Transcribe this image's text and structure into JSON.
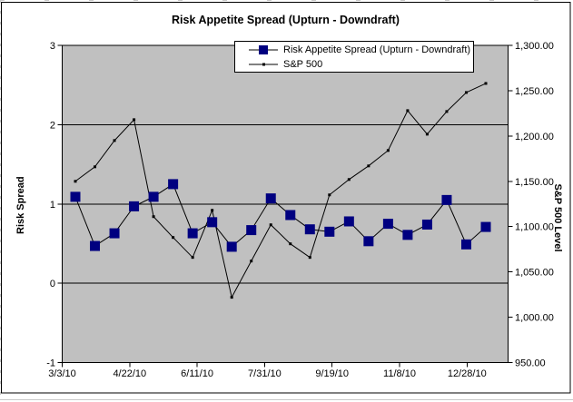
{
  "chart": {
    "title": "Risk Appetite Spread (Upturn - Downdraft)",
    "left_axis_title": "Risk Spread",
    "right_axis_title": "S&P 500 Level",
    "legend": [
      {
        "label": "Risk Appetite Spread (Upturn - Downdraft)",
        "marker": "square",
        "color": "#000080"
      },
      {
        "label": "S&P 500",
        "marker": "dot",
        "color": "#000000"
      }
    ]
  },
  "chart_data": {
    "type": "line",
    "title": "Risk Appetite Spread (Upturn - Downdraft)",
    "plot_bg_color": "#c0c0c0",
    "grid": "horizontal-only",
    "legend_position": "top-center-inside",
    "x_tick_labels": [
      "3/3/10",
      "4/22/10",
      "6/11/10",
      "7/31/10",
      "9/19/10",
      "11/8/10",
      "12/28/10"
    ],
    "left_axis": {
      "label": "Risk Spread",
      "min": -1,
      "max": 3,
      "tick_labels": [
        "3",
        "2",
        "1",
        "0",
        "-1"
      ]
    },
    "right_axis": {
      "label": "S&P 500 Level",
      "min": 950,
      "max": 1300,
      "tick_labels": [
        "1,300.00",
        "1,250.00",
        "1,200.00",
        "1,150.00",
        "1,100.00",
        "1,050.00",
        "1,000.00",
        "950.00"
      ]
    },
    "series": [
      {
        "name": "Risk Appetite Spread (Upturn - Downdraft)",
        "axis": "left",
        "marker": "square",
        "marker_color": "#000080",
        "line_color": "#000000",
        "values": [
          1.09,
          0.47,
          0.63,
          0.97,
          1.09,
          1.25,
          0.63,
          0.77,
          0.46,
          0.67,
          1.07,
          0.86,
          0.68,
          0.65,
          0.78,
          0.53,
          0.75,
          0.61,
          0.74,
          1.05,
          0.49,
          0.71
        ]
      },
      {
        "name": "S&P 500",
        "axis": "right",
        "marker": "dot",
        "marker_color": "#000000",
        "line_color": "#000000",
        "values": [
          1150,
          1166,
          1195,
          1218,
          1111,
          1088,
          1066,
          1118,
          1022,
          1062,
          1102,
          1081,
          1066,
          1135,
          1152,
          1167,
          1184,
          1228,
          1202,
          1227,
          1248,
          1258
        ]
      }
    ]
  }
}
